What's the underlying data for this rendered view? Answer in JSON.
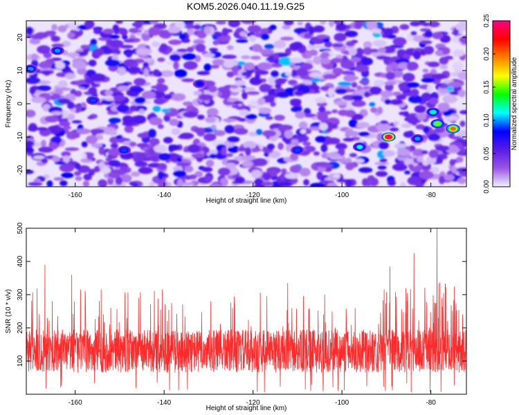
{
  "title": "KOM5.2026.040.11.19.G25",
  "chart_data": [
    {
      "type": "heatmap",
      "xlabel": "Height of straight line (km)",
      "ylabel": "Frequency (Hz)",
      "xlim": [
        -171,
        -72
      ],
      "ylim": [
        -25,
        25
      ],
      "xticks": [
        -160,
        -140,
        -120,
        -100,
        -80
      ],
      "yticks": [
        20,
        10,
        0,
        -10,
        -20
      ],
      "colorbar": {
        "label": "Normalized spectral amplitude",
        "range": [
          0,
          0.25
        ],
        "ticks": [
          "0.00",
          "0.05",
          "0.10",
          "0.15",
          "0.20",
          "0.25"
        ],
        "colors": [
          "#f2f2ff",
          "#9a55e6",
          "#5a1be8",
          "#0000ff",
          "#00ffff",
          "#00ff00",
          "#ffff00",
          "#ff8000",
          "#ff0000",
          "#ff0080"
        ]
      },
      "hotspots": [
        {
          "x": -89.5,
          "y": -10,
          "value": 0.25
        },
        {
          "x": -75,
          "y": -7.5,
          "value": 0.2
        },
        {
          "x": -78.5,
          "y": -6,
          "value": 0.15
        },
        {
          "x": -79.5,
          "y": -2.5,
          "value": 0.12
        },
        {
          "x": -96,
          "y": -13,
          "value": 0.11
        },
        {
          "x": -83,
          "y": -10.5,
          "value": 0.1
        },
        {
          "x": -170,
          "y": 10.5,
          "value": 0.1
        },
        {
          "x": -164,
          "y": 16,
          "value": 0.1
        },
        {
          "x": -156,
          "y": 1,
          "value": 0.09
        },
        {
          "x": -149,
          "y": -14,
          "value": 0.09
        },
        {
          "x": -110,
          "y": -14,
          "value": 0.09
        },
        {
          "x": -132,
          "y": 6,
          "value": 0.08
        }
      ]
    },
    {
      "type": "line",
      "xlabel": "Height of straight line (km)",
      "ylabel": "SNR (10 * v/v)",
      "xlim": [
        -171,
        -72
      ],
      "ylim": [
        0,
        500
      ],
      "xticks": [
        -160,
        -140,
        -120,
        -100,
        -80
      ],
      "yticks": [
        100,
        200,
        300,
        400,
        500
      ],
      "series": [
        {
          "name": "SNR",
          "color": "#ff2a2a",
          "baseline_mean": 130,
          "notable_peaks": [
            {
              "x": -78.6,
              "y": 500
            },
            {
              "x": -83.8,
              "y": 425
            },
            {
              "x": -89.2,
              "y": 385
            },
            {
              "x": -166.8,
              "y": 390
            },
            {
              "x": -160.8,
              "y": 360
            },
            {
              "x": -112.2,
              "y": 335
            },
            {
              "x": -77.5,
              "y": 290
            }
          ]
        }
      ]
    }
  ]
}
